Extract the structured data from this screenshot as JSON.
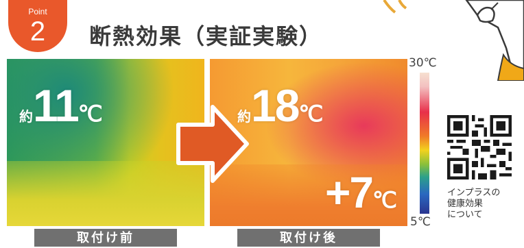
{
  "badge": {
    "small": "Point",
    "number": "2"
  },
  "title": "断熱効果（実証実験）",
  "panels": {
    "before": {
      "prefix": "約",
      "value": "11",
      "unit": "℃",
      "label": "取付け前"
    },
    "after": {
      "prefix": "約",
      "value": "18",
      "unit": "℃",
      "label": "取付け後",
      "diff": {
        "value": "+7",
        "unit": "℃"
      }
    }
  },
  "scale": {
    "max": "30℃",
    "min": "5℃"
  },
  "qr": {
    "caption": "インプラスの\n健康効果\nについて"
  },
  "colors": {
    "accent": "#e9582b",
    "label_bg": "#707070",
    "arrow": "#e05a25"
  }
}
